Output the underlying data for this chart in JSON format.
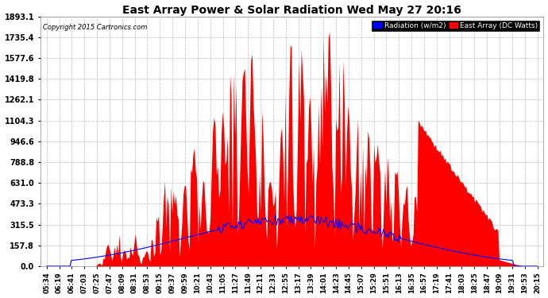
{
  "title": "East Array Power & Solar Radiation Wed May 27 20:16",
  "copyright": "Copyright 2015 Cartronics.com",
  "legend_radiation": "Radiation (w/m2)",
  "legend_east": "East Array (DC Watts)",
  "ymax": 1893.1,
  "yticks": [
    0.0,
    157.8,
    315.5,
    473.3,
    631.0,
    788.8,
    946.6,
    1104.3,
    1262.1,
    1419.8,
    1577.6,
    1735.4,
    1893.1
  ],
  "background_color": "#ffffff",
  "plot_bg_color": "#ffffff",
  "red_fill_color": "#ff0000",
  "blue_line_color": "#0000ff",
  "grid_color": "#aaaaaa",
  "title_color": "#000000",
  "tick_color": "#000000",
  "xtick_labels": [
    "05:34",
    "06:19",
    "06:41",
    "07:03",
    "07:25",
    "07:47",
    "08:09",
    "08:31",
    "08:53",
    "09:15",
    "09:37",
    "09:59",
    "10:21",
    "10:43",
    "11:05",
    "11:27",
    "11:49",
    "12:11",
    "12:33",
    "12:55",
    "13:17",
    "13:39",
    "14:01",
    "14:23",
    "14:45",
    "15:07",
    "15:29",
    "15:51",
    "16:13",
    "16:35",
    "16:57",
    "17:19",
    "17:41",
    "18:03",
    "18:25",
    "18:47",
    "19:09",
    "19:31",
    "19:53",
    "20:15"
  ],
  "copyright_color": "#000000"
}
